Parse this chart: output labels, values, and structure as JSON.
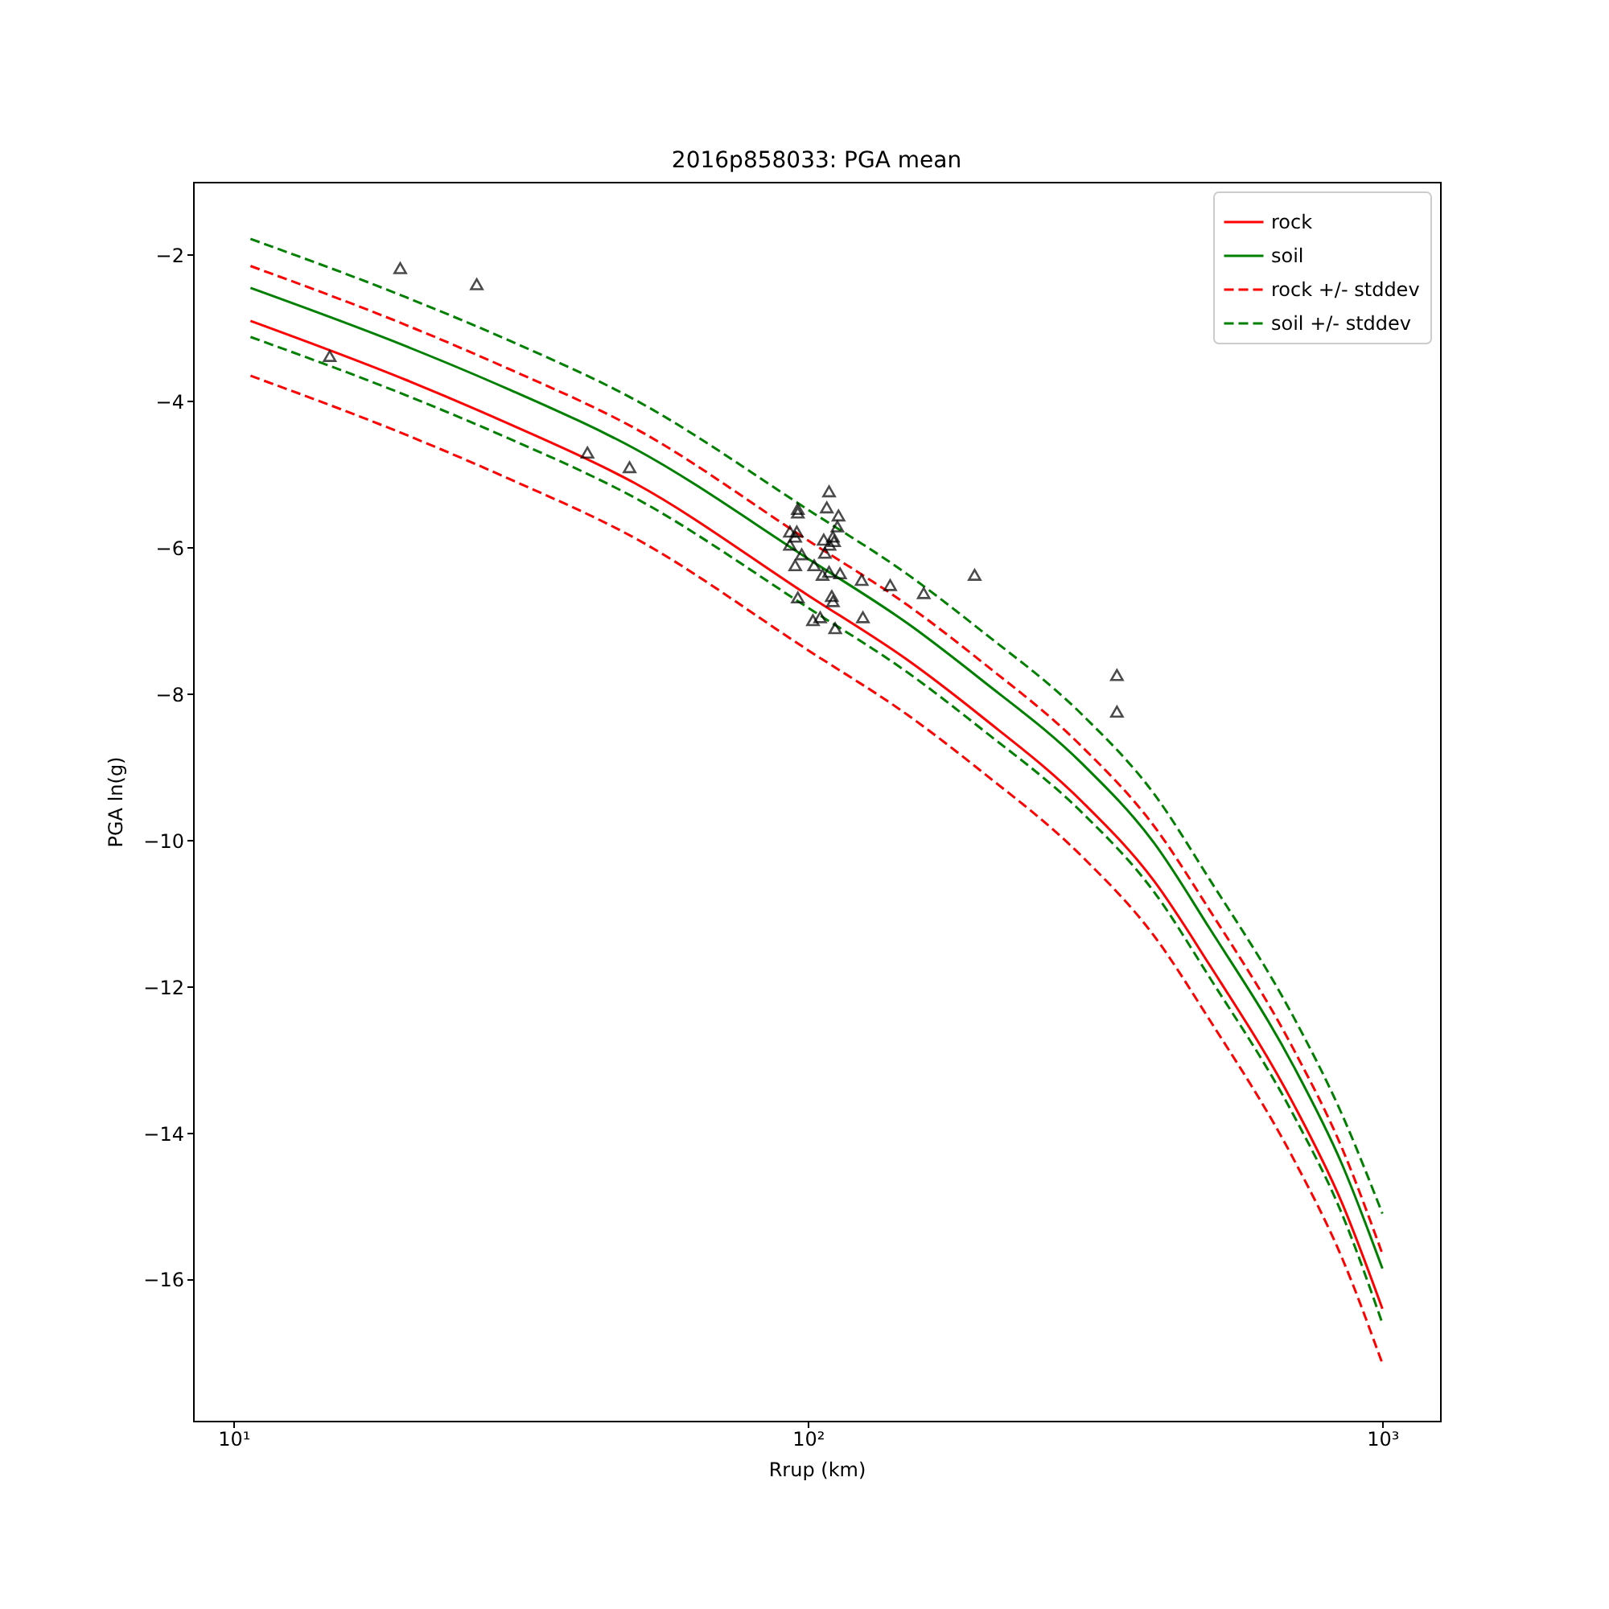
{
  "chart_data": {
    "type": "line",
    "title": "2016p858033: PGA mean",
    "xlabel": "Rrup (km)",
    "ylabel": "PGA ln(g)",
    "log": "x",
    "xlim": [
      8.5,
      1260
    ],
    "ylim": [
      -17.93,
      -1.0
    ],
    "xticks": [
      {
        "value": 10,
        "label": "10¹"
      },
      {
        "value": 100,
        "label": "10²"
      },
      {
        "value": 1000,
        "label": "10³"
      }
    ],
    "yticks": [
      -16,
      -14,
      -12,
      -10,
      -8,
      -6,
      -4,
      -2
    ],
    "grid": false,
    "legend": "top right",
    "series": [
      {
        "name": "rock",
        "color": "#ff0000",
        "line_style": "solid",
        "x": [
          10.7,
          20,
          30,
          50,
          100,
          150,
          200,
          300,
          400,
          500,
          700,
          850,
          1000
        ],
        "values": [
          -2.9,
          -3.71,
          -4.3,
          -5.12,
          -6.65,
          -7.55,
          -8.3,
          -9.47,
          -10.55,
          -11.7,
          -13.6,
          -14.95,
          -16.4
        ]
      },
      {
        "name": "soil",
        "color": "#008000",
        "line_style": "solid",
        "x": [
          10.7,
          20,
          30,
          50,
          100,
          150,
          200,
          300,
          400,
          500,
          700,
          850,
          1000
        ],
        "values": [
          -2.45,
          -3.25,
          -3.83,
          -4.65,
          -6.15,
          -7.05,
          -7.8,
          -8.95,
          -10.03,
          -11.2,
          -13.08,
          -14.42,
          -15.85
        ]
      },
      {
        "name": "rock +/- stddev",
        "color": "#ff0000",
        "line_style": "dashed",
        "x": [
          10.7,
          20,
          30,
          50,
          100,
          150,
          200,
          300,
          400,
          500,
          700,
          850,
          1000
        ],
        "values": [
          -2.15,
          -2.96,
          -3.55,
          -4.37,
          -5.9,
          -6.8,
          -7.55,
          -8.72,
          -9.8,
          -10.95,
          -12.85,
          -14.2,
          -15.65
        ]
      },
      {
        "name": "soil +/- stddev",
        "color": "#008000",
        "line_style": "dashed",
        "x": [
          10.7,
          20,
          30,
          50,
          100,
          150,
          200,
          300,
          400,
          500,
          700,
          850,
          1000
        ],
        "values": [
          -1.78,
          -2.58,
          -3.16,
          -3.98,
          -5.48,
          -6.38,
          -7.13,
          -8.28,
          -9.36,
          -10.53,
          -12.41,
          -13.74,
          -15.1
        ]
      },
      {
        "color": "#ff0000",
        "line_style": "dashed",
        "x": [
          10.7,
          20,
          30,
          50,
          100,
          150,
          200,
          300,
          400,
          500,
          700,
          850,
          1000
        ],
        "values": [
          -3.65,
          -4.46,
          -5.05,
          -5.87,
          -7.4,
          -8.3,
          -9.05,
          -10.22,
          -11.3,
          -12.45,
          -14.35,
          -15.7,
          -17.15
        ]
      },
      {
        "color": "#008000",
        "line_style": "dashed",
        "x": [
          10.7,
          20,
          30,
          50,
          100,
          150,
          200,
          300,
          400,
          500,
          700,
          850,
          1000
        ],
        "values": [
          -3.12,
          -3.92,
          -4.5,
          -5.32,
          -6.82,
          -7.72,
          -8.47,
          -9.62,
          -10.7,
          -11.87,
          -13.75,
          -15.1,
          -16.6
        ]
      },
      {
        "type": "scatter",
        "marker": "triangle",
        "color": "#000000",
        "x": [
          14.7,
          19.5,
          26.5,
          41.3,
          48.9,
          195,
          345,
          345,
          159,
          139,
          124.6,
          124,
          108.8,
          96,
          96,
          107.8,
          113,
          112.5,
          93,
          95.6,
          95,
          93,
          97.5,
          106.5,
          110.5,
          109,
          111,
          107,
          95,
          102.5,
          106,
          108.8,
          113.7,
          110,
          110.5,
          96,
          102,
          105,
          111.5
        ],
        "values": [
          -3.38,
          -2.18,
          -2.4,
          -4.7,
          -4.9,
          -6.37,
          -7.74,
          -8.24,
          -6.62,
          -6.51,
          -6.95,
          -6.44,
          -5.23,
          -5.47,
          -5.52,
          -5.45,
          -5.56,
          -5.71,
          -5.78,
          -5.78,
          -5.85,
          -5.96,
          -6.09,
          -5.89,
          -5.85,
          -5.96,
          -5.91,
          -6.07,
          -6.24,
          -6.24,
          -6.37,
          -6.33,
          -6.35,
          -6.66,
          -6.73,
          -6.68,
          -6.99,
          -6.95,
          -7.1
        ]
      }
    ]
  }
}
